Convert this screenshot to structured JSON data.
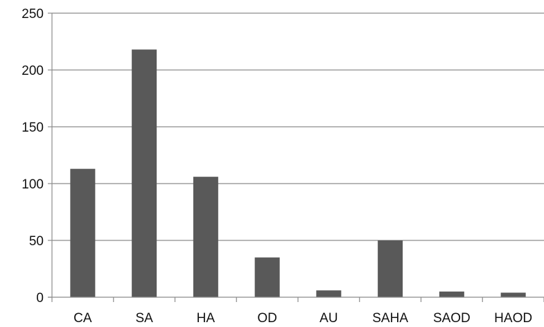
{
  "chart_data": {
    "type": "bar",
    "title": "",
    "xlabel": "",
    "ylabel": "",
    "categories": [
      "CA",
      "SA",
      "HA",
      "OD",
      "AU",
      "SAHA",
      "SAOD",
      "HAOD"
    ],
    "values": [
      113,
      218,
      106,
      35,
      6,
      50,
      5,
      4
    ],
    "ylim": [
      0,
      250
    ],
    "yticks": [
      0,
      50,
      100,
      150,
      200,
      250
    ],
    "grid": true,
    "legend": "none",
    "colors": {
      "bar": "#595959",
      "grid": "#8c8c8c",
      "axis": "#8c8c8c"
    }
  }
}
